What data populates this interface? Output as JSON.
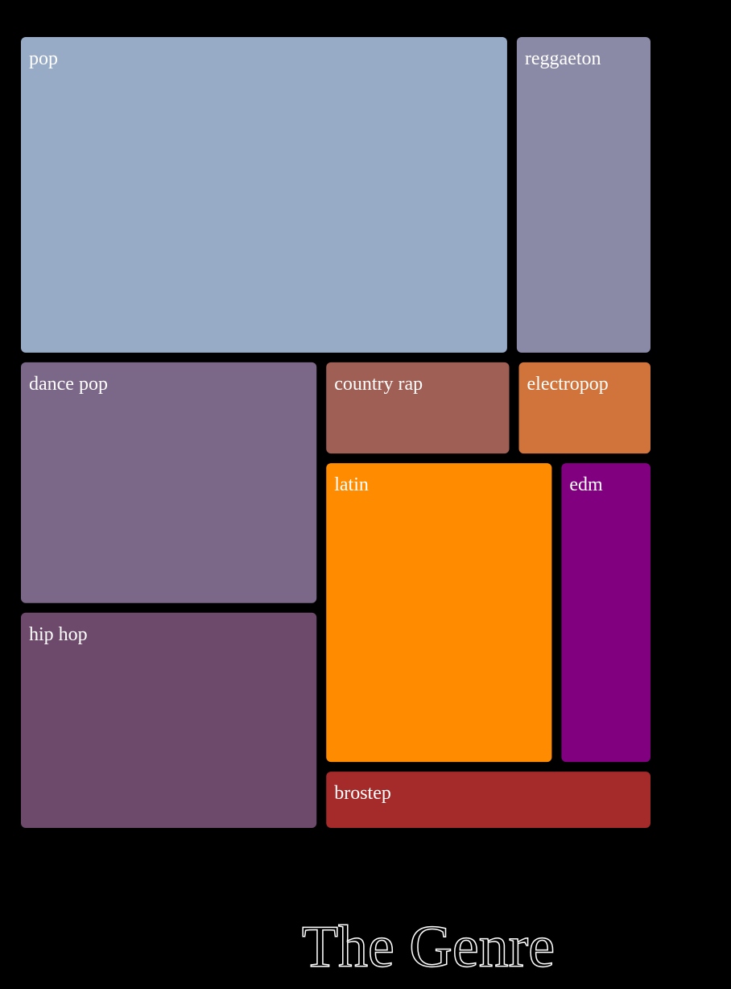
{
  "chart_data": {
    "type": "treemap",
    "title": "The Genre",
    "categories": [
      "pop",
      "reggaeton",
      "dance pop",
      "hip hop",
      "country rap",
      "electropop",
      "latin",
      "edm",
      "brostep"
    ],
    "values": [
      249,
      72,
      118,
      106,
      30,
      22,
      112,
      47,
      34
    ],
    "colors": [
      "#97abc6",
      "#8a8aa6",
      "#7b6787",
      "#6d4a6b",
      "#a05f55",
      "#d0743b",
      "#ff8c00",
      "#800080",
      "#a52a2a"
    ]
  }
}
